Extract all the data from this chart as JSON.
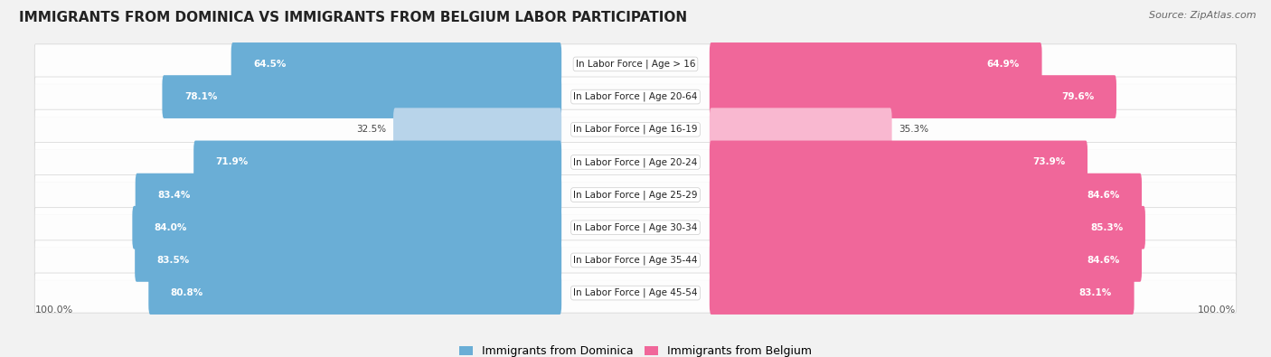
{
  "title": "IMMIGRANTS FROM DOMINICA VS IMMIGRANTS FROM BELGIUM LABOR PARTICIPATION",
  "source": "Source: ZipAtlas.com",
  "categories": [
    "In Labor Force | Age > 16",
    "In Labor Force | Age 20-64",
    "In Labor Force | Age 16-19",
    "In Labor Force | Age 20-24",
    "In Labor Force | Age 25-29",
    "In Labor Force | Age 30-34",
    "In Labor Force | Age 35-44",
    "In Labor Force | Age 45-54"
  ],
  "dominica_values": [
    64.5,
    78.1,
    32.5,
    71.9,
    83.4,
    84.0,
    83.5,
    80.8
  ],
  "belgium_values": [
    64.9,
    79.6,
    35.3,
    73.9,
    84.6,
    85.3,
    84.6,
    83.1
  ],
  "dominica_color": "#6aaed6",
  "belgium_color": "#f0679a",
  "dominica_color_light": "#b8d4ea",
  "belgium_color_light": "#f9b8d0",
  "bg_color": "#f2f2f2",
  "row_bg_color": "#e8e8e8",
  "title_fontsize": 11,
  "label_fontsize": 7.5,
  "value_fontsize": 7.5,
  "legend_dominica": "Immigrants from Dominica",
  "legend_belgium": "Immigrants from Belgium",
  "light_threshold": 50
}
